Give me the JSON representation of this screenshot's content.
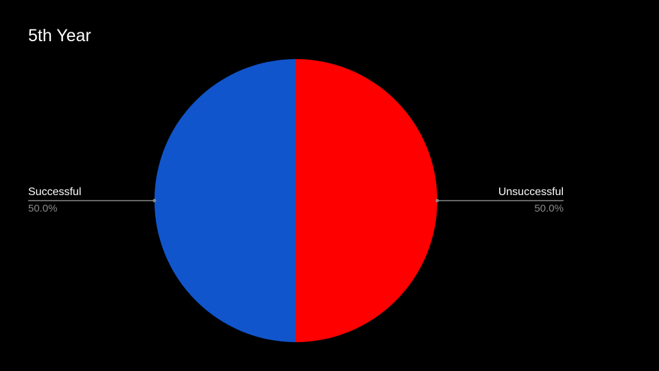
{
  "chart_data": {
    "type": "pie",
    "title": "5th Year",
    "categories": [
      "Unsuccessful",
      "Successful"
    ],
    "values": [
      50.0,
      50.0
    ],
    "value_labels": [
      "50.0%",
      "50.0%"
    ],
    "colors": [
      "#ff0000",
      "#1155cc"
    ],
    "legend": "none",
    "label_style": "outside-with-leader-lines"
  },
  "colors": {
    "background": "#000000",
    "title": "#ffffff",
    "label": "#ffffff",
    "percent": "#8a8a8a",
    "leader_line": "#888888"
  }
}
